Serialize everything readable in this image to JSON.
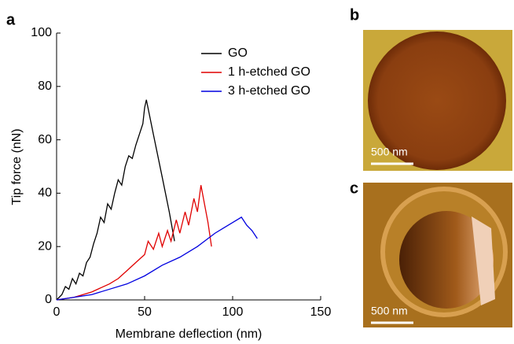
{
  "chart_data": {
    "type": "line",
    "label": "a",
    "x_label": "Membrane deflection (nm)",
    "y_label": "Tip force (nN)",
    "xlim": [
      0,
      150
    ],
    "xticks": [
      0,
      50,
      100,
      150
    ],
    "ylim": [
      0,
      100
    ],
    "yticks": [
      0,
      20,
      40,
      60,
      80,
      100
    ],
    "series": [
      {
        "name": "GO",
        "color": "#000000",
        "x": [
          0,
          3,
          5,
          7,
          9,
          11,
          13,
          15,
          17,
          19,
          21,
          23,
          25,
          27,
          29,
          31,
          33,
          35,
          37,
          39,
          41,
          43,
          45,
          47,
          49,
          50,
          51,
          55,
          60,
          64,
          67
        ],
        "values": [
          0,
          2,
          5,
          4,
          8,
          6,
          10,
          9,
          14,
          16,
          21,
          25,
          31,
          29,
          36,
          34,
          40,
          45,
          43,
          50,
          54,
          53,
          58,
          62,
          66,
          72,
          75,
          62,
          46,
          33,
          22
        ]
      },
      {
        "name": "1 h-etched GO",
        "color": "#e00000",
        "x": [
          0,
          10,
          20,
          30,
          35,
          40,
          45,
          50,
          52,
          55,
          58,
          60,
          63,
          65,
          68,
          70,
          73,
          75,
          78,
          80,
          82,
          84,
          86,
          88
        ],
        "values": [
          0,
          1,
          3,
          6,
          8,
          11,
          14,
          17,
          22,
          19,
          25,
          20,
          26,
          22,
          30,
          25,
          33,
          28,
          38,
          33,
          43,
          36,
          29,
          20
        ]
      },
      {
        "name": "3 h-etched GO",
        "color": "#0000e0",
        "x": [
          0,
          10,
          20,
          30,
          40,
          50,
          60,
          70,
          80,
          90,
          95,
          100,
          105,
          108,
          111,
          114
        ],
        "values": [
          0,
          1,
          2,
          4,
          6,
          9,
          13,
          16,
          20,
          25,
          27,
          29,
          31,
          28,
          26,
          23
        ]
      }
    ]
  },
  "images": [
    {
      "label": "b",
      "scale_bar": "500 nm"
    },
    {
      "label": "c",
      "scale_bar": "500 nm"
    }
  ]
}
